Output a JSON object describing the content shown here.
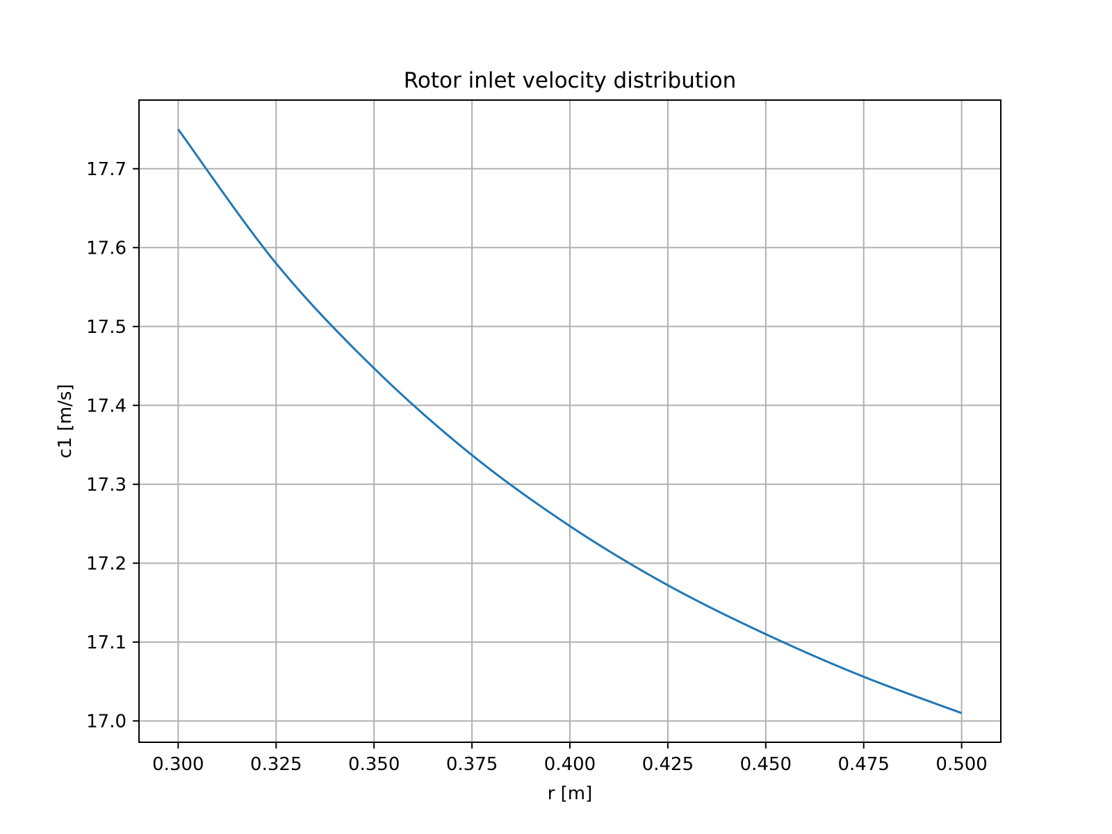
{
  "chart_data": {
    "type": "line",
    "title": "Rotor inlet velocity distribution",
    "xlabel": "r [m]",
    "ylabel": "c1 [m/s]",
    "xlim": [
      0.29,
      0.51
    ],
    "ylim": [
      16.973,
      17.787
    ],
    "xticks": [
      0.3,
      0.325,
      0.35,
      0.375,
      0.4,
      0.425,
      0.45,
      0.475,
      0.5
    ],
    "xtick_labels": [
      "0.300",
      "0.325",
      "0.350",
      "0.375",
      "0.400",
      "0.425",
      "0.450",
      "0.475",
      "0.500"
    ],
    "yticks": [
      17.0,
      17.1,
      17.2,
      17.3,
      17.4,
      17.5,
      17.6,
      17.7
    ],
    "ytick_labels": [
      "17.0",
      "17.1",
      "17.2",
      "17.3",
      "17.4",
      "17.5",
      "17.6",
      "17.7"
    ],
    "grid": true,
    "line_color": "#1f77b4",
    "series": [
      {
        "x": [
          0.3,
          0.325,
          0.35,
          0.375,
          0.4,
          0.425,
          0.45,
          0.475,
          0.5
        ],
        "values": [
          17.75,
          17.58,
          17.447,
          17.337,
          17.247,
          17.172,
          17.11,
          17.056,
          17.01
        ]
      }
    ]
  }
}
